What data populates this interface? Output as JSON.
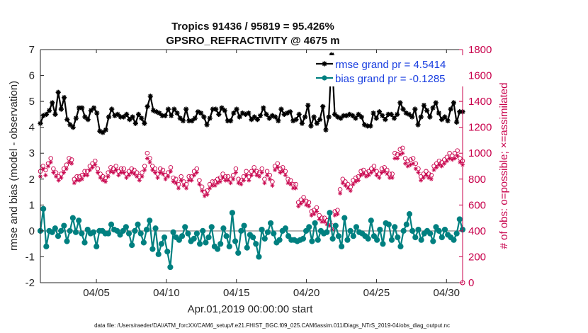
{
  "chart_data": {
    "type": "line",
    "title": "Tropics 91436 / 95819 = 95.426%",
    "subtitle": "GPSRO_REFRACTIVITY @ 4675 m",
    "xlabel": "Apr.01,2019 00:00:00 start",
    "ylabel_left": "rmse and bias (model - observation)",
    "ylabel_right": "# of obs: o=possible; ×=assimilated",
    "footer": "data file: /Users/raeder/DAI/ATM_forcXX/CAM6_setup/f.e21.FHIST_BGC.f09_025.CAM6assim.011/Diags_NTrS_2019-04/obs_diag_output.nc",
    "x_range": [
      1.0,
      31.15
    ],
    "y_left_range": [
      -2,
      7
    ],
    "y_right_range": [
      0,
      1800
    ],
    "x_ticks": [
      {
        "value": 5,
        "label": "04/05"
      },
      {
        "value": 10,
        "label": "04/10"
      },
      {
        "value": 15,
        "label": "04/15"
      },
      {
        "value": 20,
        "label": "04/20"
      },
      {
        "value": 25,
        "label": "04/25"
      },
      {
        "value": 30,
        "label": "04/30"
      }
    ],
    "y_left_ticks": [
      "-2",
      "-1",
      "0",
      "1",
      "2",
      "3",
      "4",
      "5",
      "6",
      "7"
    ],
    "y_right_ticks": [
      "0",
      "200",
      "400",
      "600",
      "800",
      "1000",
      "1200",
      "1400",
      "1600",
      "1800"
    ],
    "colors": {
      "rmse": "#000000",
      "bias": "#008080",
      "obs": "#c8004b",
      "zero_line": "#b0b0b0"
    },
    "series": [
      {
        "name": "rmse",
        "legend": "rmse grand pr = 4.5414",
        "axis": "left",
        "marker": "asterisk",
        "values": [
          4.15,
          4.45,
          4.5,
          4.65,
          4.95,
          4.5,
          5.35,
          4.7,
          5.15,
          4.3,
          4.1,
          4.0,
          4.35,
          4.75,
          4.75,
          4.4,
          4.3,
          4.65,
          4.75,
          4.55,
          3.85,
          3.8,
          3.9,
          4.4,
          4.7,
          4.45,
          4.5,
          4.4,
          4.4,
          4.5,
          4.3,
          4.4,
          4.15,
          4.5,
          4.35,
          4.15,
          4.8,
          5.2,
          4.65,
          4.6,
          4.55,
          4.45,
          4.45,
          4.7,
          4.45,
          4.7,
          4.55,
          4.35,
          4.25,
          4.7,
          4.25,
          4.25,
          4.35,
          4.6,
          4.55,
          4.4,
          4.1,
          4.35,
          4.7,
          4.7,
          4.5,
          4.75,
          4.65,
          4.25,
          4.25,
          4.55,
          4.7,
          4.4,
          4.55,
          4.5,
          4.55,
          4.3,
          4.4,
          4.3,
          4.45,
          4.75,
          4.5,
          4.35,
          4.45,
          4.4,
          4.25,
          4.7,
          4.5,
          4.55,
          4.6,
          4.25,
          4.3,
          4.5,
          4.15,
          4.4,
          4.85,
          4.05,
          4.4,
          4.15,
          4.3,
          4.8,
          3.9,
          4.4,
          6.8,
          4.5,
          4.4,
          4.35,
          4.45,
          4.45,
          4.5,
          4.45,
          4.35,
          4.5,
          4.4,
          4.1,
          4.05,
          4.05,
          4.55,
          4.35,
          4.6,
          4.45,
          4.3,
          4.5,
          4.5,
          4.35,
          4.5,
          4.95,
          4.7,
          4.55,
          4.5,
          4.4,
          4.7,
          4.1,
          4.4,
          4.85,
          4.65,
          4.4,
          4.75,
          4.95,
          4.55,
          4.3,
          4.4,
          4.25,
          4.7,
          4.95,
          4.2,
          4.6,
          4.6
        ]
      },
      {
        "name": "bias",
        "legend": "bias grand pr = -0.1285",
        "axis": "left",
        "marker": "circle",
        "values": [
          0.0,
          0.85,
          -0.6,
          0.0,
          -0.05,
          0.1,
          -0.2,
          0.0,
          0.2,
          -0.4,
          0.0,
          0.5,
          -0.05,
          0.4,
          -0.1,
          -0.45,
          0.05,
          -0.1,
          -0.05,
          -0.6,
          0.0,
          0.0,
          -0.1,
          -0.1,
          0.25,
          0.05,
          0.0,
          -0.15,
          0.0,
          0.15,
          -0.1,
          -0.55,
          0.0,
          0.25,
          -0.1,
          -0.45,
          0.05,
          0.4,
          -0.7,
          0.1,
          -0.9,
          -0.5,
          -0.25,
          -0.8,
          -1.4,
          -0.05,
          -0.25,
          -0.35,
          -0.2,
          0.15,
          -0.1,
          -0.4,
          -0.3,
          -0.1,
          -0.5,
          0.0,
          -0.45,
          -0.25,
          0.15,
          -0.6,
          -0.7,
          -0.5,
          0.1,
          -0.2,
          -0.6,
          0.7,
          -0.4,
          -0.85,
          0.0,
          0.2,
          -0.65,
          -0.15,
          -0.25,
          -0.5,
          -1.0,
          0.05,
          -0.3,
          -0.05,
          0.3,
          -0.1,
          -0.45,
          -0.35,
          0.0,
          0.1,
          -0.2,
          -0.35,
          -0.35,
          -0.4,
          -0.35,
          -0.3,
          0.0,
          0.15,
          -0.4,
          0.3,
          -0.35,
          0.0,
          -0.1,
          -0.05,
          0.7,
          -0.3,
          0.2,
          -0.2,
          -0.6,
          0.5,
          -0.35,
          0.0,
          -0.2,
          0.15,
          -0.05,
          -0.1,
          -0.2,
          -0.3,
          0.4,
          -0.2,
          -0.35,
          0.05,
          -0.5,
          0.3,
          0.25,
          -0.35,
          0.15,
          -0.25,
          -0.6,
          0.0,
          0.25,
          0.65,
          0.0,
          -0.25,
          0.05,
          -0.35,
          -0.1,
          0.0,
          -0.1,
          -0.4,
          0.15,
          0.0,
          -0.25,
          0.05,
          -0.15,
          -0.25,
          -0.35,
          -0.1,
          0.45,
          0.05
        ]
      },
      {
        "name": "obs_possible",
        "axis": "right",
        "marker": "o",
        "values": [
          860,
          900,
          870,
          920,
          960,
          880,
          850,
          820,
          840,
          880,
          910,
          960,
          950,
          800,
          820,
          820,
          830,
          860,
          860,
          900,
          920,
          940,
          880,
          840,
          820,
          810,
          850,
          890,
          880,
          900,
          860,
          880,
          880,
          840,
          860,
          880,
          870,
          850,
          820,
          850,
          900,
          1000,
          960,
          900,
          880,
          840,
          880,
          870,
          830,
          850,
          890,
          810,
          800,
          760,
          820,
          780,
          760,
          820,
          820,
          860,
          880,
          790,
          740,
          700,
          710,
          760,
          780,
          780,
          800,
          810,
          840,
          820,
          820,
          800,
          830,
          880,
          800,
          790,
          820,
          860,
          820,
          860,
          890,
          860,
          850,
          880,
          800,
          860,
          830,
          780,
          900,
          920,
          880,
          890,
          860,
          800,
          790,
          760,
          760,
          620,
          640,
          660,
          630,
          620,
          550,
          560,
          580,
          520,
          500,
          500,
          480,
          470,
          440,
          550,
          560,
          720,
          800,
          780,
          760,
          740,
          790,
          810,
          820,
          860,
          870,
          850,
          860,
          880,
          900,
          860,
          840,
          880,
          890,
          870,
          840,
          840,
          1000,
          990,
          1030,
          1040,
          960,
          940,
          950,
          960,
          920,
          880,
          820,
          840,
          860,
          840,
          830,
          900,
          920,
          940,
          930,
          950,
          970,
          1000,
          980,
          1000,
          1020,
          960,
          940
        ]
      },
      {
        "name": "obs_assimilated",
        "axis": "right",
        "marker": "asterisk",
        "values": [
          820,
          880,
          830,
          900,
          930,
          850,
          820,
          790,
          810,
          850,
          880,
          930,
          920,
          770,
          790,
          790,
          800,
          830,
          830,
          870,
          890,
          910,
          850,
          810,
          790,
          780,
          820,
          860,
          850,
          870,
          830,
          850,
          850,
          810,
          830,
          850,
          840,
          820,
          790,
          820,
          870,
          960,
          930,
          870,
          850,
          810,
          850,
          840,
          800,
          820,
          860,
          780,
          770,
          730,
          790,
          750,
          730,
          790,
          790,
          830,
          850,
          760,
          710,
          670,
          680,
          730,
          750,
          750,
          770,
          780,
          810,
          790,
          790,
          770,
          800,
          850,
          770,
          760,
          790,
          830,
          790,
          830,
          860,
          830,
          820,
          850,
          770,
          830,
          800,
          750,
          870,
          890,
          850,
          860,
          830,
          770,
          760,
          730,
          730,
          590,
          610,
          630,
          600,
          590,
          520,
          530,
          550,
          490,
          470,
          470,
          450,
          440,
          410,
          520,
          530,
          690,
          770,
          750,
          730,
          710,
          760,
          780,
          790,
          830,
          840,
          820,
          830,
          850,
          870,
          830,
          810,
          850,
          860,
          840,
          810,
          810,
          960,
          960,
          990,
          1000,
          920,
          900,
          910,
          920,
          880,
          850,
          790,
          810,
          830,
          810,
          800,
          870,
          890,
          910,
          900,
          920,
          940,
          960,
          950,
          960,
          980,
          930,
          910
        ]
      }
    ]
  }
}
